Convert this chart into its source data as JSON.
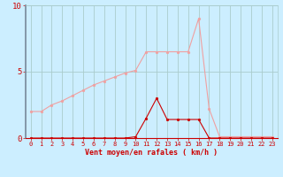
{
  "x": [
    0,
    1,
    2,
    3,
    4,
    5,
    6,
    7,
    8,
    9,
    10,
    11,
    12,
    13,
    14,
    15,
    16,
    17,
    18,
    19,
    20,
    21,
    22,
    23
  ],
  "rafales": [
    2.0,
    2.0,
    2.5,
    2.8,
    3.2,
    3.6,
    4.0,
    4.3,
    4.6,
    4.9,
    5.1,
    6.5,
    6.5,
    6.5,
    6.5,
    6.5,
    9.0,
    2.2,
    0.1,
    0.1,
    0.1,
    0.1,
    0.1,
    0.1
  ],
  "vent_moyen": [
    0.0,
    0.0,
    0.0,
    0.0,
    0.0,
    0.0,
    0.0,
    0.0,
    0.0,
    0.0,
    0.1,
    1.5,
    3.0,
    1.4,
    1.4,
    1.4,
    1.4,
    0.0,
    0.0,
    0.0,
    0.0,
    0.0,
    0.0,
    0.0
  ],
  "rafales_color": "#f0a0a0",
  "vent_color": "#cc0000",
  "bg_color": "#cceeff",
  "grid_color": "#aacccc",
  "xlabel": "Vent moyen/en rafales ( km/h )",
  "ylim": [
    0,
    10
  ],
  "xlim": [
    -0.5,
    23.5
  ],
  "yticks": [
    0,
    5,
    10
  ],
  "xticks": [
    0,
    1,
    2,
    3,
    4,
    5,
    6,
    7,
    8,
    9,
    10,
    11,
    12,
    13,
    14,
    15,
    16,
    17,
    18,
    19,
    20,
    21,
    22,
    23
  ],
  "tick_fontsize": 5,
  "xlabel_fontsize": 6,
  "marker_size": 2.0,
  "linewidth": 0.8
}
